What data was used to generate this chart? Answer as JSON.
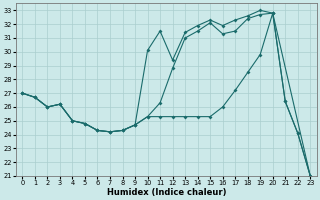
{
  "xlabel": "Humidex (Indice chaleur)",
  "background_color": "#cce9e9",
  "grid_color": "#aacece",
  "line_color": "#1a6b6b",
  "xlim_min": -0.5,
  "xlim_max": 23.5,
  "ylim_min": 21,
  "ylim_max": 33.5,
  "xticks": [
    0,
    1,
    2,
    3,
    4,
    5,
    6,
    7,
    8,
    9,
    10,
    11,
    12,
    13,
    14,
    15,
    16,
    17,
    18,
    19,
    20,
    21,
    22,
    23
  ],
  "yticks": [
    21,
    22,
    23,
    24,
    25,
    26,
    27,
    28,
    29,
    30,
    31,
    32,
    33
  ],
  "line1_x": [
    0,
    1,
    2,
    3,
    4,
    5,
    6,
    7,
    8,
    9,
    10,
    11,
    12,
    13,
    14,
    15,
    16,
    17,
    18,
    19,
    20,
    21,
    22,
    23
  ],
  "line1_y": [
    27.0,
    26.7,
    26.0,
    26.2,
    25.0,
    24.8,
    24.3,
    24.2,
    24.3,
    24.7,
    25.3,
    26.3,
    28.8,
    31.0,
    31.5,
    32.1,
    31.3,
    31.5,
    32.4,
    32.7,
    32.8,
    26.4,
    24.1,
    21.0
  ],
  "line2_x": [
    0,
    1,
    2,
    3,
    4,
    5,
    6,
    7,
    8,
    9,
    10,
    11,
    12,
    13,
    14,
    15,
    16,
    17,
    18,
    19,
    20,
    21,
    22,
    23
  ],
  "line2_y": [
    27.0,
    26.7,
    26.0,
    26.2,
    25.0,
    24.8,
    24.3,
    24.2,
    24.3,
    24.7,
    30.1,
    31.5,
    29.4,
    31.4,
    31.9,
    32.3,
    31.9,
    32.3,
    32.6,
    33.0,
    32.8,
    26.4,
    24.1,
    21.0
  ],
  "line3_x": [
    0,
    1,
    2,
    3,
    4,
    5,
    6,
    7,
    8,
    9,
    10,
    11,
    12,
    13,
    14,
    15,
    16,
    17,
    18,
    19,
    20,
    23
  ],
  "line3_y": [
    27.0,
    26.7,
    26.0,
    26.2,
    25.0,
    24.8,
    24.3,
    24.2,
    24.3,
    24.7,
    25.3,
    25.3,
    25.3,
    25.3,
    25.3,
    25.3,
    26.0,
    27.2,
    28.5,
    29.8,
    32.8,
    21.0
  ]
}
